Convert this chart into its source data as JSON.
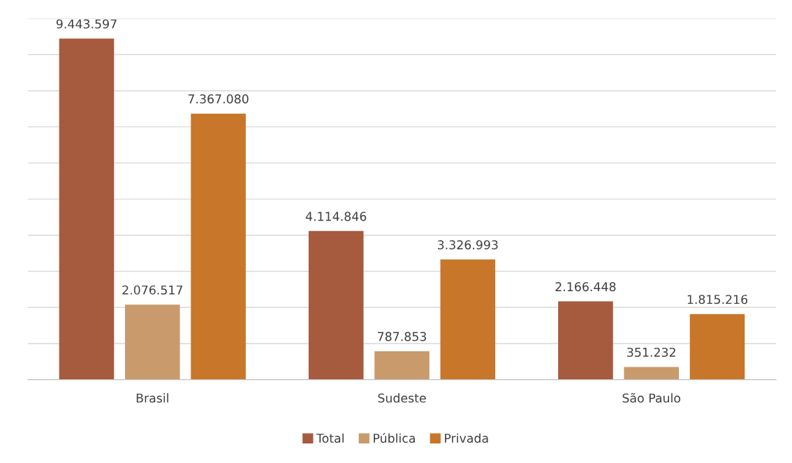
{
  "chart_data": {
    "type": "bar",
    "categories": [
      "Brasil",
      "Sudeste",
      "São Paulo"
    ],
    "series": [
      {
        "name": "Total",
        "color": "#a65a3e",
        "values": [
          9443597,
          4114846,
          2166448
        ],
        "value_labels": [
          "9.443.597",
          "4.114.846",
          "2.166.448"
        ]
      },
      {
        "name": "Pública",
        "color": "#c99a6c",
        "values": [
          2076517,
          787853,
          351232
        ],
        "value_labels": [
          "2.076.517",
          "787.853",
          "351.232"
        ]
      },
      {
        "name": "Privada",
        "color": "#c8762a",
        "values": [
          7367080,
          3326993,
          1815216
        ],
        "value_labels": [
          "7.367.080",
          "3.326.993",
          "1.815.216"
        ]
      }
    ],
    "ylim": [
      0,
      10000000
    ],
    "yticks": [
      {
        "value": 0,
        "label": null
      },
      {
        "value": 1000000,
        "label": null
      },
      {
        "value": 2000000,
        "label": null
      },
      {
        "value": 3000000,
        "label": null
      },
      {
        "value": 4000000,
        "label": null
      },
      {
        "value": 5000000,
        "label": null
      },
      {
        "value": 6000000,
        "label": null
      },
      {
        "value": 7000000,
        "label": null
      },
      {
        "value": 8000000,
        "label": null
      },
      {
        "value": 9000000,
        "label": null
      },
      {
        "value": 10000000,
        "label": null
      }
    ],
    "tick_labels": "x",
    "grid": "y",
    "legend": "bottom"
  }
}
